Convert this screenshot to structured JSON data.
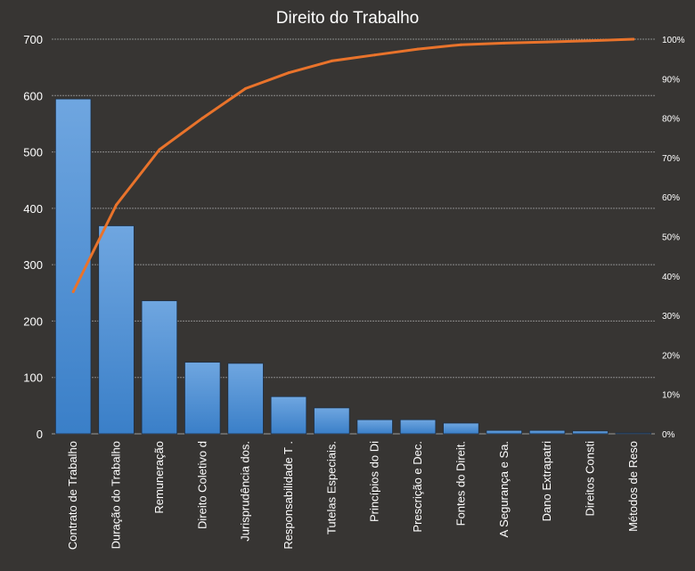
{
  "chart_data": {
    "type": "bar",
    "title": "Direito do Trabalho",
    "categories": [
      "Contrato de Trabalho",
      "Duração do Trabalho",
      "Remuneração",
      "Direito Coletivo d",
      "Jurisprudência dos.",
      "Responsabilidade T .",
      "Tutelas Especiais.",
      "Princípios do Di",
      "Prescrição e Dec.",
      "Fontes do Direit.",
      "A Segurança e Sa.",
      "Dano Extrapatri",
      "Direitos Consti",
      "Métodos de Reso"
    ],
    "series": [
      {
        "type": "bar",
        "values": [
          594,
          369,
          236,
          127,
          125,
          66,
          46,
          25,
          25,
          19,
          6,
          6,
          5,
          1
        ]
      },
      {
        "type": "line",
        "axis": "secondary",
        "values": [
          36,
          58,
          72,
          80,
          87.5,
          91.5,
          94.5,
          96,
          97.5,
          98.6,
          99,
          99.3,
          99.6,
          100
        ]
      }
    ],
    "ylim": [
      0,
      700
    ],
    "yticks": [
      "0",
      "100",
      "200",
      "300",
      "400",
      "500",
      "600",
      "700"
    ],
    "y2lim": [
      0,
      100
    ],
    "y2ticks": [
      "0%",
      "10%",
      "20%",
      "30%",
      "40%",
      "50%",
      "60%",
      "70%",
      "80%",
      "90%",
      "100%"
    ],
    "grid": true,
    "colors": {
      "background": "#373533",
      "bar_top": "#6fa6e0",
      "bar_bottom": "#3a7fc8",
      "line": "#e9732b",
      "grid": "#8a8a8a",
      "text": "#ffffff"
    }
  }
}
